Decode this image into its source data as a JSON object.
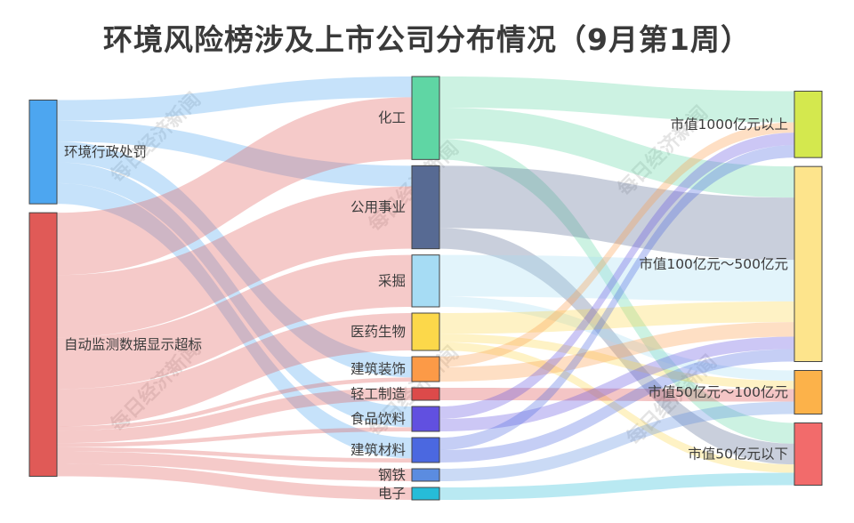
{
  "chart_data": {
    "type": "sankey",
    "title": "环境风险榜涉及上市公司分布情况（9月第1周）",
    "watermark": "每日经济新闻",
    "columns": [
      [
        {
          "id": "admin",
          "label": "环境行政处罚",
          "color": "#4da6f0"
        },
        {
          "id": "monitor",
          "label": "自动监测数据显示超标",
          "color": "#e05a57"
        }
      ],
      [
        {
          "id": "chem",
          "label": "化工",
          "color": "#5fd6a4"
        },
        {
          "id": "utility",
          "label": "公用事业",
          "color": "#576a93"
        },
        {
          "id": "mining",
          "label": "采掘",
          "color": "#a6dcf4"
        },
        {
          "id": "pharma",
          "label": "医药生物",
          "color": "#fcd84a"
        },
        {
          "id": "deco",
          "label": "建筑装饰",
          "color": "#fc9a47"
        },
        {
          "id": "light",
          "label": "轻工制造",
          "color": "#dc4a4a"
        },
        {
          "id": "food",
          "label": "食品饮料",
          "color": "#6150e0"
        },
        {
          "id": "bmat",
          "label": "建筑材料",
          "color": "#4b68e0"
        },
        {
          "id": "steel",
          "label": "钢铁",
          "color": "#5b8ce0"
        },
        {
          "id": "elec",
          "label": "电子",
          "color": "#26bcd8"
        }
      ],
      [
        {
          "id": "cap1000",
          "label": "市值1000亿元以上",
          "color": "#d4e84e"
        },
        {
          "id": "cap100",
          "label": "市值100亿元～500亿元",
          "color": "#fde48c"
        },
        {
          "id": "cap50",
          "label": "市值50亿元～100亿元",
          "color": "#fcb24a"
        },
        {
          "id": "capL50",
          "label": "市值50亿元以下",
          "color": "#f26b6b"
        }
      ]
    ],
    "links": [
      {
        "source": "admin",
        "target": "chem",
        "value": 1
      },
      {
        "source": "admin",
        "target": "utility",
        "value": 1
      },
      {
        "source": "admin",
        "target": "deco",
        "value": 1
      },
      {
        "source": "admin",
        "target": "food",
        "value": 1
      },
      {
        "source": "admin",
        "target": "bmat",
        "value": 1
      },
      {
        "source": "monitor",
        "target": "chem",
        "value": 3
      },
      {
        "source": "monitor",
        "target": "utility",
        "value": 3
      },
      {
        "source": "monitor",
        "target": "mining",
        "value": 2.5
      },
      {
        "source": "monitor",
        "target": "pharma",
        "value": 1.8
      },
      {
        "source": "monitor",
        "target": "deco",
        "value": 0.2
      },
      {
        "source": "monitor",
        "target": "light",
        "value": 0.6
      },
      {
        "source": "monitor",
        "target": "food",
        "value": 0.2
      },
      {
        "source": "monitor",
        "target": "bmat",
        "value": 0.2
      },
      {
        "source": "monitor",
        "target": "steel",
        "value": 0.6
      },
      {
        "source": "monitor",
        "target": "elec",
        "value": 0.6
      },
      {
        "source": "chem",
        "target": "cap1000",
        "value": 1.5
      },
      {
        "source": "chem",
        "target": "cap100",
        "value": 1.5
      },
      {
        "source": "chem",
        "target": "capL50",
        "value": 1
      },
      {
        "source": "utility",
        "target": "cap100",
        "value": 3
      },
      {
        "source": "utility",
        "target": "capL50",
        "value": 1
      },
      {
        "source": "mining",
        "target": "cap100",
        "value": 2
      },
      {
        "source": "mining",
        "target": "cap50",
        "value": 0.5
      },
      {
        "source": "pharma",
        "target": "cap100",
        "value": 1
      },
      {
        "source": "pharma",
        "target": "cap50",
        "value": 0.4
      },
      {
        "source": "pharma",
        "target": "capL50",
        "value": 0.4
      },
      {
        "source": "deco",
        "target": "cap1000",
        "value": 0.5
      },
      {
        "source": "deco",
        "target": "cap100",
        "value": 0.7
      },
      {
        "source": "light",
        "target": "cap50",
        "value": 0.6
      },
      {
        "source": "food",
        "target": "cap1000",
        "value": 0.6
      },
      {
        "source": "food",
        "target": "cap100",
        "value": 0.6
      },
      {
        "source": "bmat",
        "target": "cap1000",
        "value": 0.6
      },
      {
        "source": "bmat",
        "target": "cap100",
        "value": 0.6
      },
      {
        "source": "steel",
        "target": "cap50",
        "value": 0.6
      },
      {
        "source": "elec",
        "target": "capL50",
        "value": 0.6
      }
    ]
  }
}
